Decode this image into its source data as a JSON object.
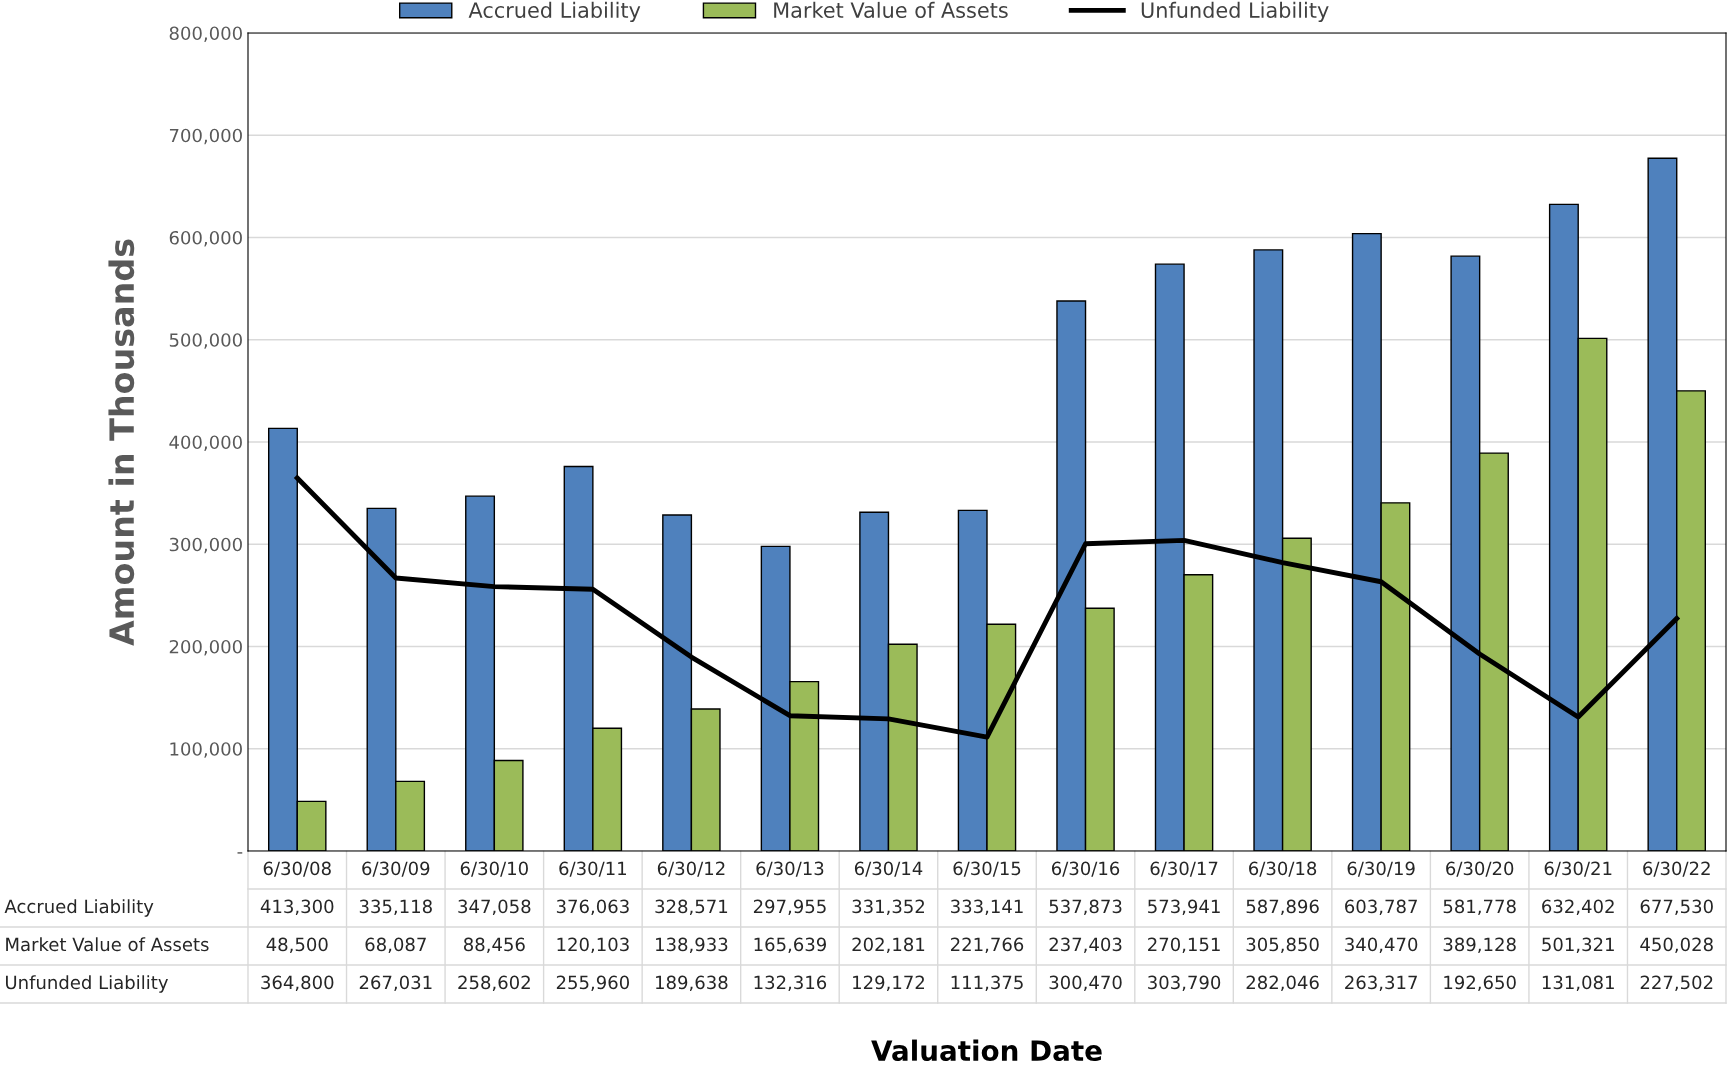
{
  "chart_data": {
    "type": "bar",
    "annotations": [
      "Valuation Date"
    ],
    "ylabel": "Amount in Thousands",
    "categories": [
      "6/30/08",
      "6/30/09",
      "6/30/10",
      "6/30/11",
      "6/30/12",
      "6/30/13",
      "6/30/14",
      "6/30/15",
      "6/30/16",
      "6/30/17",
      "6/30/18",
      "6/30/19",
      "6/30/20",
      "6/30/21",
      "6/30/22"
    ],
    "series": [
      {
        "name": "Accrued Liability",
        "color": "#4f81bd",
        "values": [
          413300,
          335118,
          347058,
          376063,
          328571,
          297955,
          331352,
          333141,
          537873,
          573941,
          587896,
          603787,
          581778,
          632402,
          677530
        ],
        "value_labels": [
          "413,300",
          "335,118",
          "347,058",
          "376,063",
          "328,571",
          "297,955",
          "331,352",
          "333,141",
          "537,873",
          "573,941",
          "587,896",
          "603,787",
          "581,778",
          "632,402",
          "677,530"
        ]
      },
      {
        "name": "Market Value of Assets",
        "color": "#9bbb59",
        "values": [
          48500,
          68087,
          88456,
          120103,
          138933,
          165639,
          202181,
          221766,
          237403,
          270151,
          305850,
          340470,
          389128,
          501321,
          450028
        ],
        "value_labels": [
          "48,500",
          "68,087",
          "88,456",
          "120,103",
          "138,933",
          "165,639",
          "202,181",
          "221,766",
          "237,403",
          "270,151",
          "305,850",
          "340,470",
          "389,128",
          "501,321",
          "450,028"
        ]
      },
      {
        "name": "Unfunded Liability",
        "type": "line",
        "color": "#000000",
        "values": [
          364800,
          267031,
          258602,
          255960,
          189638,
          132316,
          129172,
          111375,
          300470,
          303790,
          282046,
          263317,
          192650,
          131081,
          227502
        ],
        "value_labels": [
          "364,800",
          "267,031",
          "258,602",
          "255,960",
          "189,638",
          "132,316",
          "129,172",
          "111,375",
          "300,470",
          "303,790",
          "282,046",
          "263,317",
          "192,650",
          "131,081",
          "227,502"
        ]
      }
    ],
    "ylim": [
      0,
      800000
    ],
    "yticks": [
      {
        "value": 0,
        "label": "-"
      },
      {
        "value": 100000,
        "label": "100,000"
      },
      {
        "value": 200000,
        "label": "200,000"
      },
      {
        "value": 300000,
        "label": "300,000"
      },
      {
        "value": 400000,
        "label": "400,000"
      },
      {
        "value": 500000,
        "label": "500,000"
      },
      {
        "value": 600000,
        "label": "600,000"
      },
      {
        "value": 700000,
        "label": "700,000"
      },
      {
        "value": 800000,
        "label": "800,000"
      }
    ],
    "grid": "y",
    "legend": "top",
    "marker": "none",
    "line_style": "solid"
  }
}
